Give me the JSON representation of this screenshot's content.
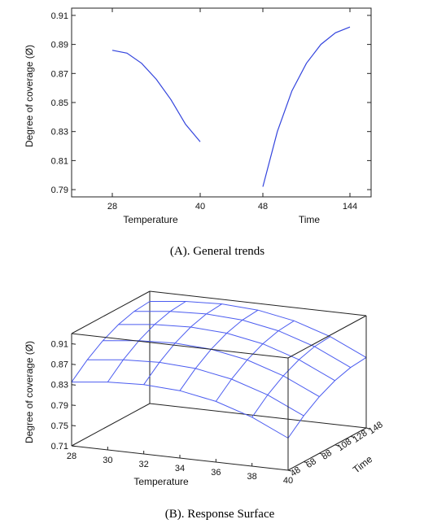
{
  "captions": {
    "a": "(A). General trends",
    "b": "(B). Response Surface"
  },
  "colors": {
    "series": "#3344dd",
    "surface": "#4b5cf0",
    "frame": "#222222"
  },
  "chart_data": [
    {
      "type": "line",
      "title": "",
      "ylabel": "Degree of coverage (Ø)",
      "ylim": [
        0.785,
        0.915
      ],
      "yticks": [
        "0.79",
        "0.81",
        "0.83",
        "0.85",
        "0.87",
        "0.89",
        "0.91"
      ],
      "grid": false,
      "panels": [
        {
          "name": "Temperature",
          "xlabel": "Temperature",
          "x_ticks": [
            "28",
            "40"
          ],
          "x": [
            28,
            30,
            32,
            34,
            36,
            38,
            40
          ],
          "y": [
            0.886,
            0.884,
            0.877,
            0.866,
            0.852,
            0.835,
            0.823
          ]
        },
        {
          "name": "Time",
          "xlabel": "Time",
          "x_ticks": [
            "48",
            "144"
          ],
          "x": [
            48,
            64,
            80,
            96,
            112,
            128,
            144
          ],
          "y": [
            0.792,
            0.83,
            0.858,
            0.877,
            0.89,
            0.898,
            0.902
          ]
        }
      ]
    },
    {
      "type": "surface",
      "title": "",
      "xlabel": "Temperature",
      "ylabel": "Time",
      "zlabel": "Degree of coverage (Ø)",
      "x_ticks": [
        "28",
        "30",
        "32",
        "34",
        "36",
        "38",
        "40"
      ],
      "y_ticks": [
        "48",
        "68",
        "88",
        "108",
        "128",
        "148"
      ],
      "z_ticks": [
        "0.71",
        "0.75",
        "0.79",
        "0.83",
        "0.87",
        "0.91"
      ],
      "xlim": [
        28,
        40
      ],
      "ylim": [
        48,
        148
      ],
      "zlim": [
        0.71,
        0.93
      ],
      "grid_x": [
        28,
        30,
        32,
        34,
        36,
        38,
        40
      ],
      "grid_y": [
        48,
        68,
        88,
        108,
        128,
        148
      ],
      "z": [
        [
          0.835,
          0.843,
          0.846,
          0.842,
          0.829,
          0.806,
          0.773
        ],
        [
          0.862,
          0.87,
          0.873,
          0.869,
          0.856,
          0.833,
          0.8
        ],
        [
          0.883,
          0.891,
          0.894,
          0.89,
          0.877,
          0.854,
          0.821
        ],
        [
          0.898,
          0.906,
          0.909,
          0.905,
          0.892,
          0.869,
          0.836
        ],
        [
          0.907,
          0.915,
          0.918,
          0.914,
          0.901,
          0.878,
          0.845
        ],
        [
          0.91,
          0.918,
          0.921,
          0.917,
          0.904,
          0.881,
          0.848
        ]
      ]
    }
  ]
}
